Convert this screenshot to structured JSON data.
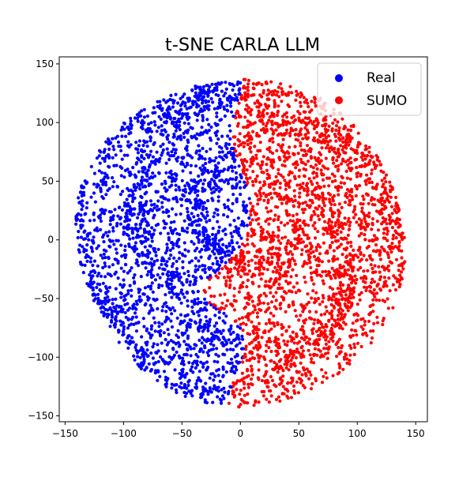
{
  "chart_data": {
    "type": "scatter",
    "title": "t-SNE CARLA LLM",
    "xlabel": "",
    "ylabel": "",
    "xlim": [
      -155,
      160
    ],
    "ylim": [
      -155,
      156
    ],
    "xticks": [
      -150,
      -100,
      -50,
      0,
      50,
      100,
      150
    ],
    "yticks": [
      -150,
      -100,
      -50,
      0,
      50,
      100,
      150
    ],
    "xtick_labels": [
      "−150",
      "−100",
      "−50",
      "0",
      "50",
      "100",
      "150"
    ],
    "ytick_labels": [
      "−150",
      "−100",
      "−50",
      "0",
      "50",
      "100",
      "150"
    ],
    "grid": false,
    "legend_position": "top-right",
    "description_cloud": {
      "center": [
        0,
        0
      ],
      "radius": 140,
      "boundary_rule": "Real on the left of a curved divider near x=0 (dipping to about x=-30 around y=-45), SUMO on the right; real region extends x from -140 to about 0, SUMO region x from about -30 to 145"
    },
    "series": [
      {
        "name": "Real",
        "color": "#0000ff",
        "point_count_approx": 3000,
        "x_range": [
          -140,
          5
        ],
        "y_range": [
          -138,
          142
        ],
        "sample_points": [
          [
            -120,
            80
          ],
          [
            -100,
            40
          ],
          [
            -80,
            120
          ],
          [
            -60,
            -60
          ],
          [
            -130,
            0
          ],
          [
            -40,
            20
          ],
          [
            -20,
            -100
          ],
          [
            -90,
            -90
          ],
          [
            -50,
            100
          ],
          [
            -10,
            60
          ],
          [
            -110,
            -40
          ],
          [
            -70,
            0
          ],
          [
            -30,
            -130
          ],
          [
            -5,
            135
          ],
          [
            -125,
            -20
          ],
          [
            -60,
            60
          ]
        ]
      },
      {
        "name": "SUMO",
        "color": "#ff0000",
        "point_count_approx": 3200,
        "x_range": [
          -32,
          146
        ],
        "y_range": [
          -138,
          135
        ],
        "sample_points": [
          [
            20,
            80
          ],
          [
            40,
            40
          ],
          [
            60,
            0
          ],
          [
            80,
            -40
          ],
          [
            100,
            60
          ],
          [
            120,
            20
          ],
          [
            140,
            0
          ],
          [
            30,
            -50
          ],
          [
            50,
            -100
          ],
          [
            70,
            120
          ],
          [
            100,
            -80
          ],
          [
            10,
            -20
          ],
          [
            -20,
            -40
          ],
          [
            110,
            -60
          ],
          [
            90,
            100
          ],
          [
            45,
            -130
          ]
        ]
      }
    ]
  }
}
